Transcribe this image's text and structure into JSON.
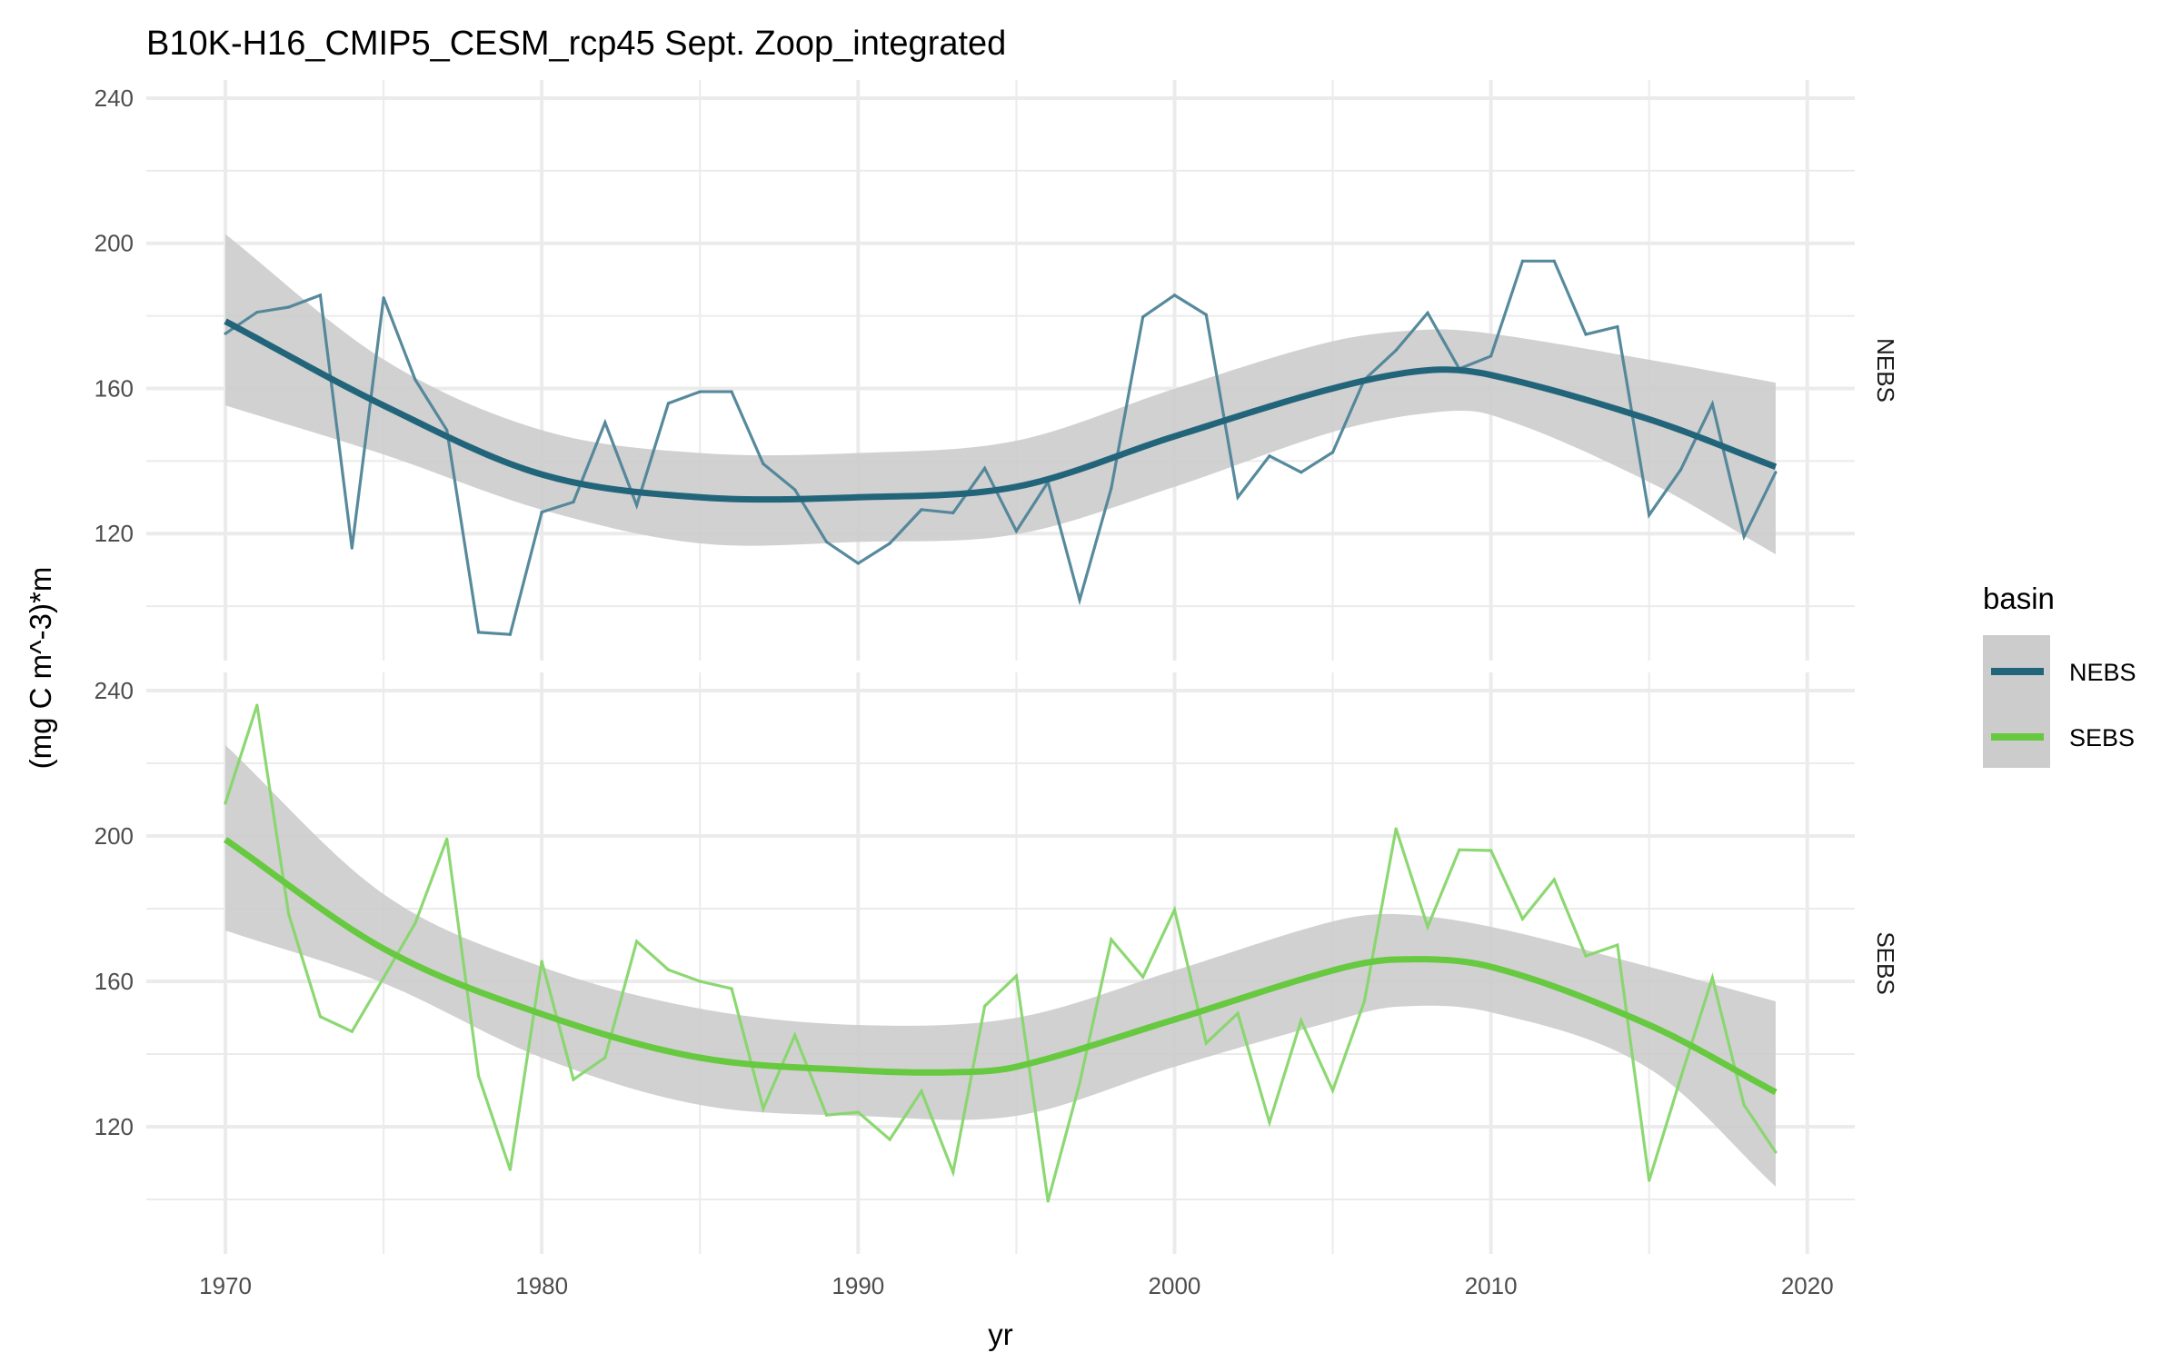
{
  "chart_data": {
    "type": "line",
    "title": "B10K-H16_CMIP5_CESM_rcp45 Sept. Zoop_integrated",
    "xlabel": "yr",
    "ylabel": "(mg C m^-3)*m",
    "xlim": [
      1967.5,
      2021.5
    ],
    "x_ticks": [
      1970,
      1980,
      1990,
      2000,
      2010,
      2020
    ],
    "y_ticks": [
      120,
      160,
      200,
      240
    ],
    "grid": true,
    "legend": {
      "title": "basin",
      "placement": "right",
      "entries": [
        "NEBS",
        "SEBS"
      ]
    },
    "panels": [
      {
        "strip": "NEBS",
        "ylim": [
          85,
          245
        ],
        "color_fit": "#22657A",
        "color_raw": "#4E8497",
        "x": [
          1970,
          1971,
          1972,
          1973,
          1974,
          1975,
          1976,
          1977,
          1978,
          1979,
          1980,
          1981,
          1982,
          1983,
          1984,
          1985,
          1986,
          1987,
          1988,
          1989,
          1990,
          1991,
          1992,
          1993,
          1994,
          1995,
          1996,
          1997,
          1998,
          1999,
          2000,
          2001,
          2002,
          2003,
          2004,
          2005,
          2006,
          2007,
          2008,
          2009,
          2010,
          2011,
          2012,
          2013,
          2014,
          2015,
          2016,
          2017,
          2018,
          2019
        ],
        "values": [
          175.1,
          181.0,
          182.4,
          185.7,
          116.0,
          185.0,
          162.4,
          148.5,
          92.8,
          92.2,
          125.9,
          128.7,
          150.6,
          127.8,
          155.9,
          159.1,
          159.1,
          139.2,
          132.1,
          117.7,
          111.8,
          117.3,
          126.6,
          125.7,
          138.0,
          120.7,
          134.2,
          101.7,
          132.5,
          179.7,
          185.7,
          180.3,
          130.0,
          141.4,
          136.9,
          142.4,
          162.4,
          170.5,
          180.8,
          165.4,
          168.9,
          195.1,
          195.1,
          174.9,
          177.0,
          125.1,
          137.6,
          155.7,
          119.2,
          136.9
        ],
        "smooth": [
          [
            1970,
            178.5
          ],
          [
            1975,
            155.3
          ],
          [
            1980,
            136.3
          ],
          [
            1985,
            130.0
          ],
          [
            1990,
            130.0
          ],
          [
            1995,
            132.9
          ],
          [
            2000,
            146.8
          ],
          [
            2005,
            160.0
          ],
          [
            2008,
            165.0
          ],
          [
            2010,
            163.7
          ],
          [
            2015,
            151.5
          ],
          [
            2019,
            138.4
          ]
        ],
        "ci_band": [
          [
            1970,
            155.3,
            202.5
          ],
          [
            1975,
            141.8,
            168.0
          ],
          [
            1980,
            126.6,
            148.5
          ],
          [
            1985,
            117.3,
            142.2
          ],
          [
            1990,
            117.7,
            142.2
          ],
          [
            1995,
            119.8,
            145.6
          ],
          [
            2000,
            132.9,
            159.9
          ],
          [
            2005,
            148.0,
            173.0
          ],
          [
            2008,
            153.2,
            176.2
          ],
          [
            2010,
            152.7,
            175.1
          ],
          [
            2015,
            134.2,
            167.9
          ],
          [
            2019,
            114.3,
            161.6
          ]
        ]
      },
      {
        "strip": "SEBS",
        "ylim": [
          85,
          245
        ],
        "color_fit": "#67C940",
        "color_raw": "#86D66A",
        "x": [
          1970,
          1971,
          1972,
          1973,
          1974,
          1975,
          1976,
          1977,
          1978,
          1979,
          1980,
          1981,
          1982,
          1983,
          1984,
          1985,
          1986,
          1987,
          1988,
          1989,
          1990,
          1991,
          1992,
          1993,
          1994,
          1995,
          1996,
          1997,
          1998,
          1999,
          2000,
          2001,
          2002,
          2003,
          2004,
          2005,
          2006,
          2007,
          2008,
          2009,
          2010,
          2011,
          2012,
          2013,
          2014,
          2015,
          2016,
          2017,
          2018,
          2019
        ],
        "values": [
          209.0,
          236.0,
          178.5,
          150.3,
          146.2,
          161.0,
          176.0,
          199.2,
          134.0,
          108.2,
          165.5,
          133.0,
          139.0,
          171.0,
          163.2,
          160.0,
          158.0,
          125.0,
          145.2,
          123.2,
          124.0,
          116.5,
          129.8,
          107.5,
          153.2,
          161.5,
          99.5,
          132.0,
          171.5,
          161.2,
          179.7,
          143.0,
          151.2,
          121.2,
          149.2,
          130.0,
          154.5,
          202.0,
          175.0,
          196.2,
          196.0,
          177.2,
          188.0,
          167.0,
          170.0,
          105.2,
          133.5,
          161.0,
          126.0,
          113.0
        ],
        "smooth": [
          [
            1970,
            199.0
          ],
          [
            1975,
            169.0
          ],
          [
            1980,
            151.0
          ],
          [
            1985,
            139.0
          ],
          [
            1990,
            135.5
          ],
          [
            1993,
            135.0
          ],
          [
            1995,
            136.5
          ],
          [
            2000,
            149.5
          ],
          [
            2005,
            163.0
          ],
          [
            2007,
            166.0
          ],
          [
            2010,
            164.0
          ],
          [
            2015,
            148.0
          ],
          [
            2019,
            129.5
          ]
        ],
        "ci_band": [
          [
            1970,
            174.0,
            225.0
          ],
          [
            1975,
            159.5,
            184.0
          ],
          [
            1980,
            139.0,
            164.0
          ],
          [
            1985,
            126.0,
            152.5
          ],
          [
            1990,
            123.0,
            148.0
          ],
          [
            1995,
            123.0,
            150.0
          ],
          [
            2000,
            136.5,
            163.0
          ],
          [
            2005,
            149.0,
            176.5
          ],
          [
            2007,
            153.0,
            178.5
          ],
          [
            2010,
            151.5,
            175.0
          ],
          [
            2015,
            136.0,
            164.0
          ],
          [
            2019,
            103.5,
            154.5
          ]
        ]
      }
    ],
    "band_color": "#CCCCCC",
    "grid_color": "#EBEBEB"
  }
}
